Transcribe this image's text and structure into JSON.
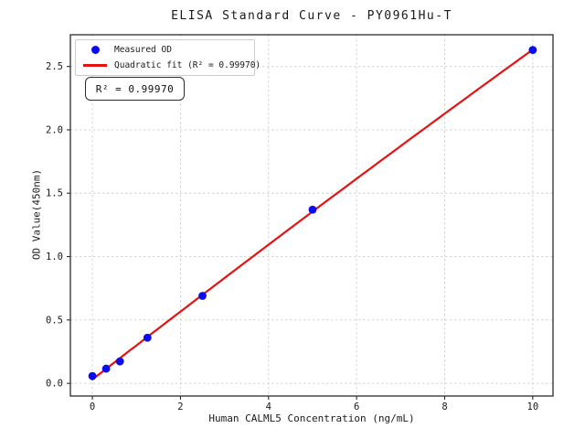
{
  "chart_data": {
    "type": "scatter",
    "title": "ELISA Standard Curve - PY0961Hu-T",
    "xlabel": "Human CALML5 Concentration (ng/mL)",
    "ylabel": "OD Value(450nm)",
    "xlim": [
      -0.5,
      10.46
    ],
    "ylim": [
      -0.1,
      2.75
    ],
    "x_ticks": [
      0,
      2,
      4,
      6,
      8,
      10
    ],
    "x_tick_labels": [
      "0",
      "2",
      "4",
      "6",
      "8",
      "10"
    ],
    "y_ticks": [
      0,
      0.5,
      1.0,
      1.5,
      2.0,
      2.5
    ],
    "y_tick_labels": [
      "0.0",
      "0.5",
      "1.0",
      "1.5",
      "2.0",
      "2.5"
    ],
    "grid": true,
    "legend_position": "upper left",
    "series": [
      {
        "name": "Measured OD",
        "type": "scatter",
        "color": "#0b0bee",
        "marker": "circle",
        "x": [
          0,
          0.312,
          0.625,
          1.25,
          2.5,
          5,
          10
        ],
        "y": [
          0.058,
          0.116,
          0.173,
          0.36,
          0.69,
          1.37,
          2.63
        ]
      },
      {
        "name": "Quadratic fit (R² = 0.99970)",
        "type": "quadratic-fit",
        "color": "#e51212",
        "r_squared": 0.9997
      }
    ],
    "annotation": "R² = 0.99970",
    "colors": {
      "frame": "#2b2b2b",
      "grid": "#cfcfcf",
      "tick_label": "#1a1a1a"
    }
  }
}
